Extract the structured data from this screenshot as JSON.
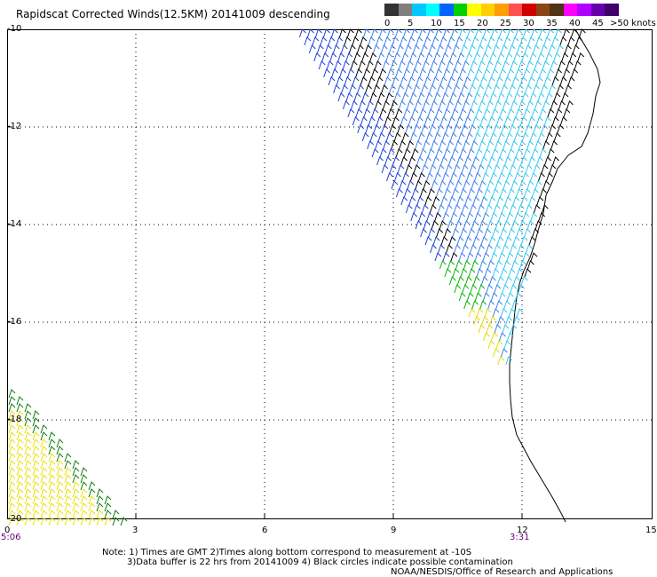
{
  "title": "Rapidscat Corrected Winds(12.5KM) 20141009 descending",
  "legend": {
    "units": ">50 knots",
    "labels": [
      "0",
      "5",
      "10",
      "15",
      "20",
      "25",
      "30",
      "35",
      "40",
      "45"
    ],
    "colors": [
      "#333333",
      "#7f7f7f",
      "#00c8ff",
      "#00ffff",
      "#0064ff",
      "#00d000",
      "#ffff00",
      "#ffd000",
      "#ff9e00",
      "#ff5050",
      "#d00000",
      "#8b4513",
      "#503214",
      "#ff00ff",
      "#b000ff",
      "#6600aa",
      "#40006a"
    ]
  },
  "axes": {
    "y_labels": [
      "-10",
      "-12",
      "-14",
      "-16",
      "-18",
      "-20"
    ],
    "x_labels": [
      "0",
      "3",
      "6",
      "9",
      "12",
      "15"
    ]
  },
  "times": {
    "left": "5:06",
    "right": "3:31"
  },
  "notes": {
    "line1": "Note: 1) Times are GMT 2)Times along bottom correspond to measurement at -10S",
    "line2": "3)Data buffer is 22 hrs from 20141009 4) Black circles indicate possible contamination",
    "credit": "NOAA/NESDIS/Office of Research and Applications"
  }
}
